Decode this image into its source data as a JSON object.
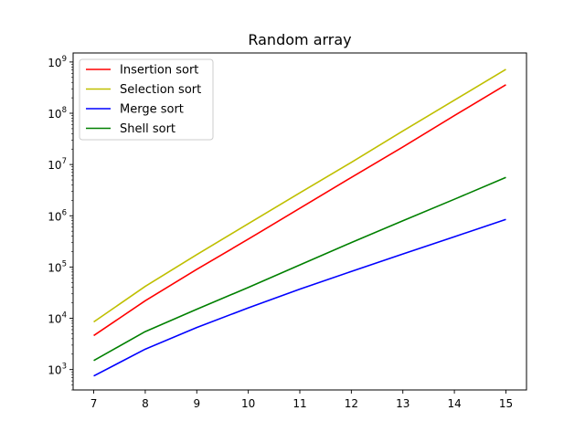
{
  "chart_data": {
    "type": "line",
    "title": "Random array",
    "xlabel": "",
    "ylabel": "",
    "y_scale": "log",
    "xlim": [
      6.6,
      15.4
    ],
    "ylim": [
      400,
      1500000000
    ],
    "x_ticks": [
      7,
      8,
      9,
      10,
      11,
      12,
      13,
      14,
      15
    ],
    "y_ticks": [
      {
        "value": 1000,
        "mantissa": "10",
        "exp": "3"
      },
      {
        "value": 10000,
        "mantissa": "10",
        "exp": "4"
      },
      {
        "value": 100000,
        "mantissa": "10",
        "exp": "5"
      },
      {
        "value": 1000000,
        "mantissa": "10",
        "exp": "6"
      },
      {
        "value": 10000000,
        "mantissa": "10",
        "exp": "7"
      },
      {
        "value": 100000000,
        "mantissa": "10",
        "exp": "8"
      },
      {
        "value": 1000000000,
        "mantissa": "10",
        "exp": "9"
      }
    ],
    "x": [
      7,
      8,
      9,
      10,
      11,
      12,
      13,
      14,
      15
    ],
    "series": [
      {
        "name": "Insertion sort",
        "color": "#ff0000",
        "values": [
          4600,
          22000,
          90000,
          350000,
          1400000,
          5600000,
          22000000,
          90000000,
          360000000
        ]
      },
      {
        "name": "Selection sort",
        "color": "#bfbf00",
        "values": [
          8500,
          42000,
          175000,
          700000,
          2800000,
          11000000,
          45000000,
          180000000,
          720000000
        ]
      },
      {
        "name": "Merge sort",
        "color": "#0000ff",
        "values": [
          750,
          2500,
          6600,
          16000,
          37000,
          82000,
          180000,
          390000,
          850000
        ]
      },
      {
        "name": "Shell sort",
        "color": "#008000",
        "values": [
          1500,
          5500,
          15000,
          40000,
          110000,
          300000,
          800000,
          2100000,
          5600000
        ]
      }
    ],
    "legend": "top-left",
    "grid": false
  }
}
